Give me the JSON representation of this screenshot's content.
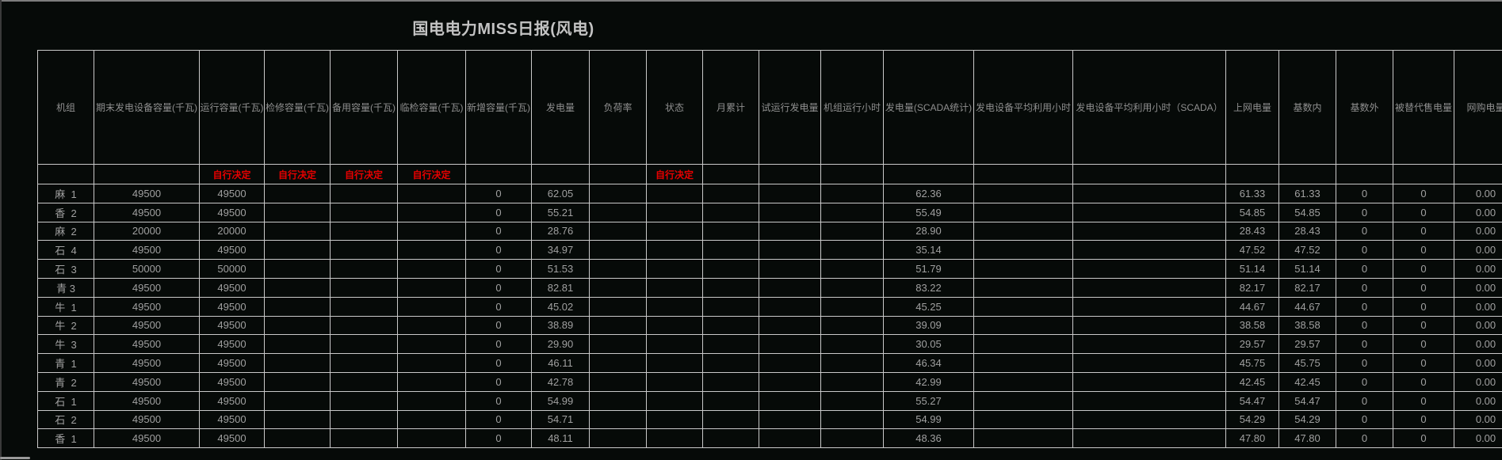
{
  "page": {
    "title": "国电电力MISS日报(风电)"
  },
  "colors": {
    "note_red": "#e60000",
    "grid": "#c9c9c9",
    "title": "#c3c3c3",
    "background": "#060a08"
  },
  "table": {
    "sub_header_note": "自行决定",
    "columns": [
      {
        "label": "机组",
        "sub": ""
      },
      {
        "label": "期末发电设备容量(千瓦)",
        "sub": ""
      },
      {
        "label": "运行容量(千瓦)",
        "sub": "自行决定"
      },
      {
        "label": "检修容量(千瓦)",
        "sub": "自行决定"
      },
      {
        "label": "备用容量(千瓦)",
        "sub": "自行决定"
      },
      {
        "label": "临检容量(千瓦)",
        "sub": "自行决定"
      },
      {
        "label": "新增容量(千瓦)",
        "sub": ""
      },
      {
        "label": "发电量",
        "sub": ""
      },
      {
        "label": "负荷率",
        "sub": ""
      },
      {
        "label": "状态",
        "sub": "自行决定"
      },
      {
        "label": "月累计",
        "sub": ""
      },
      {
        "label": "试运行发电量",
        "sub": ""
      },
      {
        "label": "机组运行小时",
        "sub": ""
      },
      {
        "label": "发电量(SCADA统计)",
        "sub": ""
      },
      {
        "label": "发电设备平均利用小时",
        "sub": ""
      },
      {
        "label": "发电设备平均利用小时（SCADA）",
        "sub": ""
      },
      {
        "label": "上网电量",
        "sub": ""
      },
      {
        "label": "基数内",
        "sub": ""
      },
      {
        "label": "基数外",
        "sub": ""
      },
      {
        "label": "被替代售电量",
        "sub": ""
      },
      {
        "label": "网购电量",
        "sub": ""
      }
    ],
    "rows": [
      {
        "unit": "麻  1",
        "cells": [
          "49500",
          "49500",
          "",
          "",
          "",
          "0",
          "62.05",
          "",
          "",
          "",
          "",
          "",
          "62.36",
          "",
          "",
          "61.33",
          "61.33",
          "0",
          "0",
          "0.00"
        ]
      },
      {
        "unit": "香  2",
        "cells": [
          "49500",
          "49500",
          "",
          "",
          "",
          "0",
          "55.21",
          "",
          "",
          "",
          "",
          "",
          "55.49",
          "",
          "",
          "54.85",
          "54.85",
          "0",
          "0",
          "0.00"
        ]
      },
      {
        "unit": "麻  2",
        "cells": [
          "20000",
          "20000",
          "",
          "",
          "",
          "0",
          "28.76",
          "",
          "",
          "",
          "",
          "",
          "28.90",
          "",
          "",
          "28.43",
          "28.43",
          "0",
          "0",
          "0.00"
        ]
      },
      {
        "unit": "石  4",
        "cells": [
          "49500",
          "49500",
          "",
          "",
          "",
          "0",
          "34.97",
          "",
          "",
          "",
          "",
          "",
          "35.14",
          "",
          "",
          "47.52",
          "47.52",
          "0",
          "0",
          "0.00"
        ]
      },
      {
        "unit": "石  3",
        "cells": [
          "50000",
          "50000",
          "",
          "",
          "",
          "0",
          "51.53",
          "",
          "",
          "",
          "",
          "",
          "51.79",
          "",
          "",
          "51.14",
          "51.14",
          "0",
          "0",
          "0.00"
        ]
      },
      {
        "unit": "青 3",
        "cells": [
          "49500",
          "49500",
          "",
          "",
          "",
          "0",
          "82.81",
          "",
          "",
          "",
          "",
          "",
          "83.22",
          "",
          "",
          "82.17",
          "82.17",
          "0",
          "0",
          "0.00"
        ]
      },
      {
        "unit": "牛  1",
        "cells": [
          "49500",
          "49500",
          "",
          "",
          "",
          "0",
          "45.02",
          "",
          "",
          "",
          "",
          "",
          "45.25",
          "",
          "",
          "44.67",
          "44.67",
          "0",
          "0",
          "0.00"
        ]
      },
      {
        "unit": "牛  2",
        "cells": [
          "49500",
          "49500",
          "",
          "",
          "",
          "0",
          "38.89",
          "",
          "",
          "",
          "",
          "",
          "39.09",
          "",
          "",
          "38.58",
          "38.58",
          "0",
          "0",
          "0.00"
        ]
      },
      {
        "unit": "牛  3",
        "cells": [
          "49500",
          "49500",
          "",
          "",
          "",
          "0",
          "29.90",
          "",
          "",
          "",
          "",
          "",
          "30.05",
          "",
          "",
          "29.57",
          "29.57",
          "0",
          "0",
          "0.00"
        ]
      },
      {
        "unit": "青  1",
        "cells": [
          "49500",
          "49500",
          "",
          "",
          "",
          "0",
          "46.11",
          "",
          "",
          "",
          "",
          "",
          "46.34",
          "",
          "",
          "45.75",
          "45.75",
          "0",
          "0",
          "0.00"
        ]
      },
      {
        "unit": "青  2",
        "cells": [
          "49500",
          "49500",
          "",
          "",
          "",
          "0",
          "42.78",
          "",
          "",
          "",
          "",
          "",
          "42.99",
          "",
          "",
          "42.45",
          "42.45",
          "0",
          "0",
          "0.00"
        ]
      },
      {
        "unit": "石  1",
        "cells": [
          "49500",
          "49500",
          "",
          "",
          "",
          "0",
          "54.99",
          "",
          "",
          "",
          "",
          "",
          "55.27",
          "",
          "",
          "54.47",
          "54.47",
          "0",
          "0",
          "0.00"
        ]
      },
      {
        "unit": "石  2",
        "cells": [
          "49500",
          "49500",
          "",
          "",
          "",
          "0",
          "54.71",
          "",
          "",
          "",
          "",
          "",
          "54.99",
          "",
          "",
          "54.29",
          "54.29",
          "0",
          "0",
          "0.00"
        ]
      },
      {
        "unit": "香  1",
        "cells": [
          "49500",
          "49500",
          "",
          "",
          "",
          "0",
          "48.11",
          "",
          "",
          "",
          "",
          "",
          "48.36",
          "",
          "",
          "47.80",
          "47.80",
          "0",
          "0",
          "0.00"
        ]
      }
    ]
  }
}
